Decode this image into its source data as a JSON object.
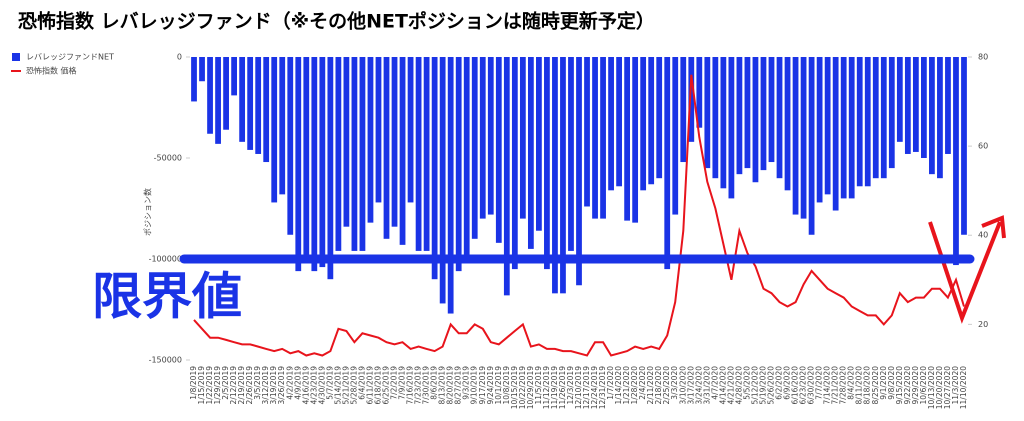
{
  "chart_data": {
    "type": "bar_line",
    "title": "恐怖指数 レバレッジファンド（※その他NETポジションは随時更新予定）",
    "y_label": "ポジション数",
    "categories": [
      "1/8/2019",
      "1/15/2019",
      "1/22/2019",
      "1/29/2019",
      "2/5/2019",
      "2/12/2019",
      "2/19/2019",
      "2/26/2019",
      "3/5/2019",
      "3/12/2019",
      "3/19/2019",
      "3/26/2019",
      "4/2/2019",
      "4/9/2019",
      "4/16/2019",
      "4/23/2019",
      "4/30/2019",
      "5/7/2019",
      "5/14/2019",
      "5/21/2019",
      "5/28/2019",
      "6/4/2019",
      "6/11/2019",
      "6/18/2019",
      "6/25/2019",
      "7/2/2019",
      "7/9/2019",
      "7/16/2019",
      "7/23/2019",
      "7/30/2019",
      "8/6/2019",
      "8/13/2019",
      "8/20/2019",
      "8/27/2019",
      "9/3/2019",
      "9/10/2019",
      "9/17/2019",
      "9/24/2019",
      "10/1/2019",
      "10/8/2019",
      "10/15/2019",
      "10/22/2019",
      "10/29/2019",
      "11/5/2019",
      "11/12/2019",
      "11/19/2019",
      "11/26/2019",
      "12/3/2019",
      "12/10/2019",
      "12/17/2019",
      "12/24/2019",
      "12/31/2019",
      "1/7/2020",
      "1/14/2020",
      "1/21/2020",
      "1/28/2020",
      "2/4/2020",
      "2/11/2020",
      "2/18/2020",
      "2/25/2020",
      "3/3/2020",
      "3/10/2020",
      "3/17/2020",
      "3/24/2020",
      "3/31/2020",
      "4/7/2020",
      "4/14/2020",
      "4/21/2020",
      "4/28/2020",
      "5/5/2020",
      "5/12/2020",
      "5/19/2020",
      "5/26/2020",
      "6/2/2020",
      "6/9/2020",
      "6/16/2020",
      "6/23/2020",
      "6/30/2020",
      "7/7/2020",
      "7/14/2020",
      "7/21/2020",
      "7/28/2020",
      "8/4/2020",
      "8/11/2020",
      "8/18/2020",
      "8/25/2020",
      "9/1/2020",
      "9/8/2020",
      "9/15/2020",
      "9/22/2020",
      "9/29/2020",
      "10/6/2020",
      "10/13/2020",
      "10/20/2020",
      "10/27/2020",
      "11/3/2020",
      "11/10/2020"
    ],
    "series": [
      {
        "name": "レバレッジファンドNET",
        "color": "#1a33e6",
        "values": [
          -22000,
          -12000,
          -38000,
          -43000,
          -36000,
          -19000,
          -42000,
          -46000,
          -48000,
          -52000,
          -72000,
          -68000,
          -88000,
          -106000,
          -98000,
          -106000,
          -104000,
          -110000,
          -96000,
          -84000,
          -96000,
          -96000,
          -82000,
          -72000,
          -90000,
          -84000,
          -93000,
          -72000,
          -96000,
          -96000,
          -110000,
          -122000,
          -127000,
          -106000,
          -98000,
          -90000,
          -80000,
          -78000,
          -92000,
          -118000,
          -105000,
          -80000,
          -95000,
          -86000,
          -105000,
          -117000,
          -117000,
          -96000,
          -113000,
          -74000,
          -80000,
          -80000,
          -66000,
          -64000,
          -81000,
          -82000,
          -66000,
          -63000,
          -60000,
          -105000,
          -78000,
          -52000,
          -42000,
          -35000,
          -55000,
          -60000,
          -65000,
          -70000,
          -58000,
          -55000,
          -62000,
          -56000,
          -52000,
          -60000,
          -66000,
          -78000,
          -80000,
          -88000,
          -72000,
          -68000,
          -76000,
          -70000,
          -70000,
          -64000,
          -64000,
          -60000,
          -60000,
          -55000,
          -42000,
          -48000,
          -47000,
          -50000,
          -58000,
          -60000,
          -48000,
          -103000,
          -88000
        ]
      },
      {
        "name": "恐怖指数 価格",
        "color": "#e8141c",
        "axis": "y2",
        "values": [
          21,
          19,
          17,
          17,
          16.5,
          16,
          15.5,
          15.5,
          15,
          14.5,
          14,
          14.5,
          13.5,
          14,
          13,
          13.5,
          13,
          14,
          19,
          18.5,
          16,
          18,
          17.5,
          17,
          16,
          15.5,
          16,
          14.5,
          15,
          14.5,
          14,
          15,
          20,
          18,
          18,
          20,
          19,
          16,
          15.5,
          17,
          18.5,
          20,
          15,
          15.5,
          14.5,
          14.5,
          14,
          14,
          13.5,
          13,
          16,
          16,
          13,
          13.5,
          14,
          15,
          14.5,
          15,
          14.5,
          17.5,
          25,
          41,
          76,
          62,
          52,
          46,
          38,
          30,
          41,
          36,
          33,
          28,
          27,
          25,
          24,
          25,
          29,
          32,
          30,
          28,
          27,
          26,
          24,
          23,
          22,
          22,
          20,
          22,
          27,
          25,
          26,
          26,
          28,
          28,
          26,
          30,
          24
        ]
      }
    ],
    "ylim": [
      -150000,
      0
    ],
    "yticks": [
      0,
      -50000,
      -100000,
      -150000
    ],
    "y2lim": [
      12,
      80
    ],
    "y2ticks": [
      20,
      40,
      60,
      80
    ],
    "threshold": {
      "label": "限界値",
      "value": -100000
    },
    "legend": "top-left"
  }
}
